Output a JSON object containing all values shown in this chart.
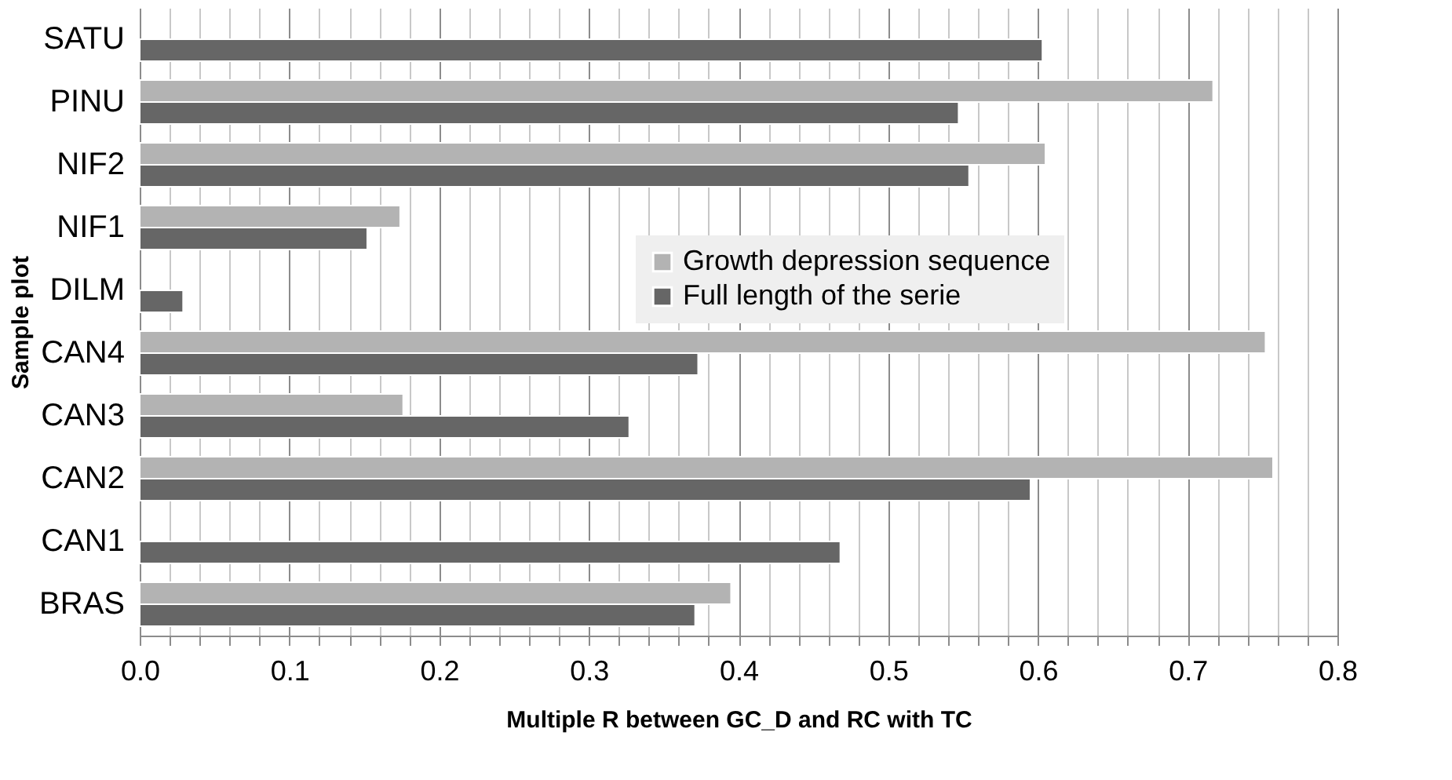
{
  "chart_data": {
    "type": "bar",
    "orientation": "horizontal",
    "xlabel": "Multiple R between GC_D and RC with TC",
    "ylabel": "Sample plot",
    "categories": [
      "SATU",
      "PINU",
      "NIF2",
      "NIF1",
      "DILM",
      "CAN4",
      "CAN3",
      "CAN2",
      "CAN1",
      "BRAS"
    ],
    "series": [
      {
        "name": "Growth depression sequence",
        "color": "#b3b3b3",
        "values": [
          null,
          0.717,
          0.605,
          0.174,
          null,
          0.752,
          0.176,
          0.757,
          null,
          0.395
        ]
      },
      {
        "name": "Full length of the serie",
        "color": "#666666",
        "values": [
          0.603,
          0.547,
          0.554,
          0.152,
          0.029,
          0.373,
          0.327,
          0.595,
          0.468,
          0.371
        ]
      }
    ],
    "xlim": [
      0,
      0.8
    ],
    "xticks": [
      {
        "value": 0,
        "label": "0.0"
      },
      {
        "value": 0.02,
        "label": null
      },
      {
        "value": 0.04,
        "label": null
      },
      {
        "value": 0.06,
        "label": null
      },
      {
        "value": 0.08,
        "label": null
      },
      0.1,
      {
        "value": 0.12,
        "label": null
      },
      {
        "value": 0.14,
        "label": null
      },
      {
        "value": 0.16,
        "label": null
      },
      {
        "value": 0.18,
        "label": null
      },
      0.2,
      {
        "value": 0.22,
        "label": null
      },
      {
        "value": 0.24,
        "label": null
      },
      {
        "value": 0.26,
        "label": null
      },
      {
        "value": 0.28,
        "label": null
      },
      0.3,
      {
        "value": 0.32,
        "label": null
      },
      {
        "value": 0.34,
        "label": null
      },
      {
        "value": 0.36,
        "label": null
      },
      {
        "value": 0.38,
        "label": null
      },
      0.4,
      {
        "value": 0.42,
        "label": null
      },
      {
        "value": 0.44,
        "label": null
      },
      {
        "value": 0.46,
        "label": null
      },
      {
        "value": 0.48,
        "label": null
      },
      0.5,
      {
        "value": 0.52,
        "label": null
      },
      {
        "value": 0.54,
        "label": null
      },
      {
        "value": 0.56,
        "label": null
      },
      {
        "value": 0.58,
        "label": null
      },
      0.6,
      {
        "value": 0.62,
        "label": null
      },
      {
        "value": 0.64,
        "label": null
      },
      {
        "value": 0.66,
        "label": null
      },
      {
        "value": 0.68,
        "label": null
      },
      0.7,
      {
        "value": 0.72,
        "label": null
      },
      {
        "value": 0.74,
        "label": null
      },
      {
        "value": 0.76,
        "label": null
      },
      {
        "value": 0.78,
        "label": null
      },
      0.8
    ],
    "grid": true,
    "legend": "right"
  }
}
